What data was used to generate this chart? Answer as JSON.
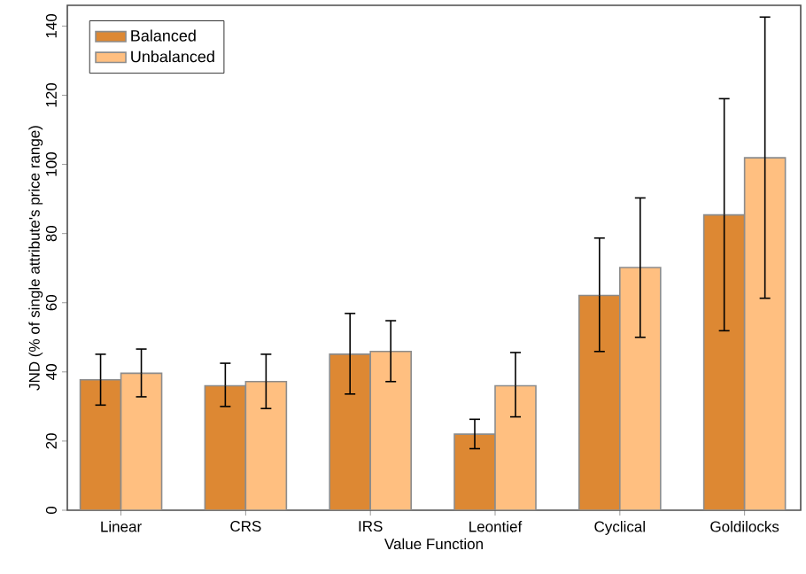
{
  "chart_data": {
    "type": "bar",
    "xlabel": "Value Function",
    "ylabel": "JND (% of single attribute's price range)",
    "categories": [
      "Linear",
      "CRS",
      "IRS",
      "Leontief",
      "Cyclical",
      "Goldilocks"
    ],
    "series": [
      {
        "name": "Balanced",
        "color": "#dd8833",
        "values": [
          37.7,
          36.0,
          45.1,
          22.0,
          62.1,
          85.4
        ],
        "errors": [
          [
            30.4,
            45.1
          ],
          [
            30.0,
            42.5
          ],
          [
            33.6,
            56.9
          ],
          [
            17.8,
            26.3
          ],
          [
            45.9,
            78.7
          ],
          [
            51.9,
            119.0
          ]
        ]
      },
      {
        "name": "Unbalanced",
        "color": "#ffbf80",
        "values": [
          39.6,
          37.2,
          45.9,
          36.0,
          70.2,
          101.9
        ],
        "errors": [
          [
            32.8,
            46.6
          ],
          [
            29.4,
            45.1
          ],
          [
            37.2,
            54.8
          ],
          [
            27.0,
            45.6
          ],
          [
            50.0,
            90.3
          ],
          [
            61.3,
            142.6
          ]
        ]
      }
    ],
    "ylim": [
      0,
      146
    ],
    "yticks": [
      0,
      20,
      40,
      60,
      80,
      100,
      120,
      140
    ],
    "grid": false,
    "legend": "top left"
  }
}
